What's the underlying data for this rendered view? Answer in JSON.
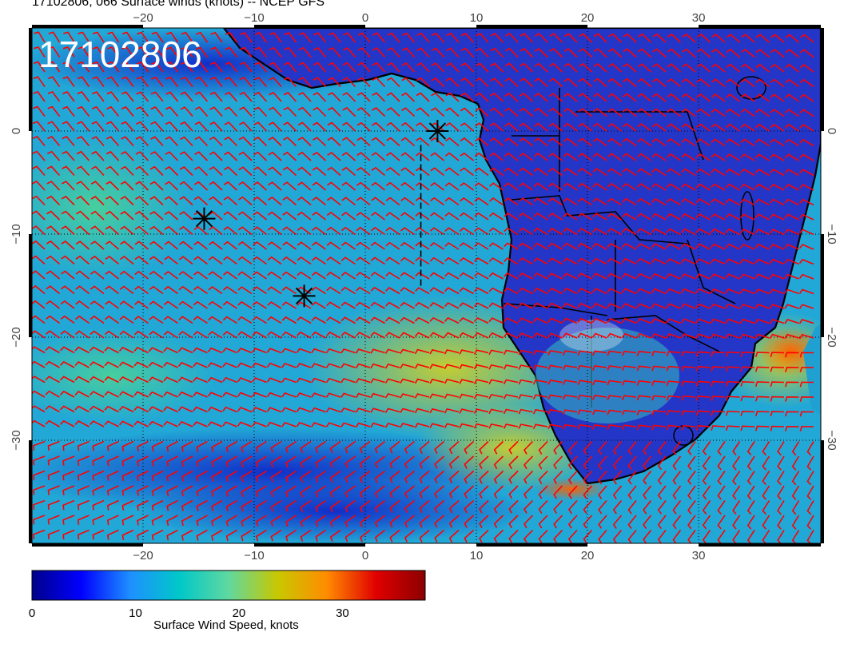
{
  "title": "17102806, 066 Surface winds (knots) -- NCEP GFS",
  "stamp": "17102806",
  "lon_ticks": [
    "−20",
    "−10",
    "0",
    "10",
    "20",
    "30"
  ],
  "lon_values": [
    -20,
    -10,
    0,
    10,
    20,
    30
  ],
  "lat_ticks": [
    "0",
    "−10",
    "−20",
    "−30"
  ],
  "lat_values": [
    0,
    -10,
    -20,
    -30
  ],
  "extent": {
    "lon": [
      -30,
      41
    ],
    "lat": [
      -40,
      10
    ]
  },
  "colorbar": {
    "title": "Surface Wind Speed, knots",
    "labels": [
      "0",
      "10",
      "20",
      "30"
    ],
    "values": [
      0,
      10,
      20,
      30
    ],
    "max": 38,
    "colors": [
      "#00008b",
      "#0000ff",
      "#1e90ff",
      "#00c8c8",
      "#60d8a0",
      "#c8c800",
      "#ff8c00",
      "#e00000",
      "#8b0000"
    ]
  },
  "colors": {
    "wind_barbs": "#ff0000",
    "markers": "#000000",
    "ocean_base": "#22a8d6",
    "land_base": "#1a2cc0"
  },
  "markers": [
    {
      "type": "asterisk",
      "lon": -14.5,
      "lat": -8.5
    },
    {
      "type": "asterisk",
      "lon": -5.5,
      "lat": -16
    },
    {
      "type": "asterisk",
      "lon": 6.5,
      "lat": 0
    }
  ],
  "dashed_line": {
    "lon": 5,
    "lat": [
      -15,
      -1
    ]
  }
}
